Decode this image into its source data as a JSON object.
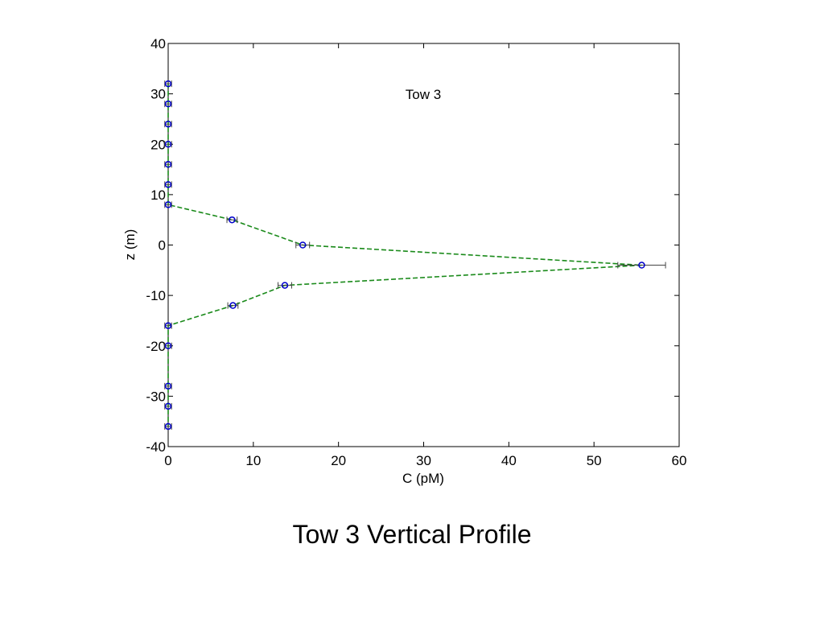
{
  "caption": "Tow 3 Vertical Profile",
  "chart_data": {
    "type": "line",
    "title": "",
    "annotation": "Tow 3",
    "xlabel": "C  (pM)",
    "ylabel": "z  (m)",
    "xlim": [
      0,
      60
    ],
    "ylim": [
      -40,
      40
    ],
    "xticks": [
      0,
      10,
      20,
      30,
      40,
      50,
      60
    ],
    "yticks": [
      -40,
      -30,
      -20,
      -10,
      0,
      10,
      20,
      30,
      40
    ],
    "grid": false,
    "legend": "none",
    "series": [
      {
        "marker": "circle",
        "line_style": "dashed",
        "line_color": "#1a8a1a",
        "marker_color": "#0000cc",
        "errorbar_color": "#444444",
        "points": [
          {
            "x": 0,
            "y": 32,
            "err": 0.4
          },
          {
            "x": 0,
            "y": 28,
            "err": 0.4
          },
          {
            "x": 0,
            "y": 24,
            "err": 0.4
          },
          {
            "x": 0,
            "y": 20,
            "err": 0.4
          },
          {
            "x": 0,
            "y": 16,
            "err": 0.4
          },
          {
            "x": 0,
            "y": 12,
            "err": 0.4
          },
          {
            "x": 0,
            "y": 8,
            "err": 0.4
          },
          {
            "x": 7.5,
            "y": 5,
            "err": 0.6
          },
          {
            "x": 15.8,
            "y": 0,
            "err": 0.8
          },
          {
            "x": 55.6,
            "y": -4,
            "err": 2.8
          },
          {
            "x": 13.7,
            "y": -8,
            "err": 0.8
          },
          {
            "x": 7.6,
            "y": -12,
            "err": 0.6
          },
          {
            "x": 0,
            "y": -16,
            "err": 0.4
          },
          {
            "x": 0,
            "y": -20,
            "err": 0.4
          },
          {
            "x": 0,
            "y": -28,
            "err": 0.4
          },
          {
            "x": 0,
            "y": -32,
            "err": 0.4
          },
          {
            "x": 0,
            "y": -36,
            "err": 0.4
          }
        ]
      }
    ]
  }
}
